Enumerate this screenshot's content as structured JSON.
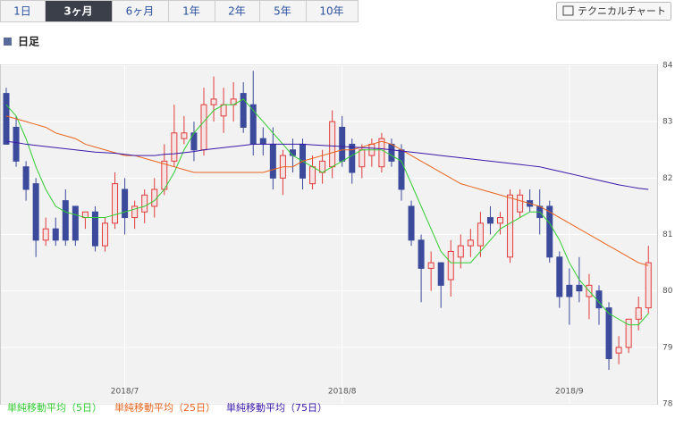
{
  "ui": {
    "tabs": [
      "1日",
      "3ヶ月",
      "6ヶ月",
      "1年",
      "2年",
      "5年",
      "10年"
    ],
    "active_tab": 1,
    "button": "テクニカルチャート",
    "section": "日足"
  },
  "chart_data": {
    "type": "candlestick",
    "categories": [
      null,
      null,
      null,
      null,
      null,
      null,
      null,
      null,
      null,
      null,
      null,
      null,
      "2018/7",
      null,
      null,
      null,
      null,
      null,
      null,
      null,
      null,
      null,
      null,
      null,
      null,
      null,
      null,
      null,
      null,
      null,
      null,
      null,
      null,
      null,
      "2018/8",
      null,
      null,
      null,
      null,
      null,
      null,
      null,
      null,
      null,
      null,
      null,
      null,
      null,
      null,
      null,
      null,
      null,
      null,
      null,
      null,
      null,
      null,
      "2018/9",
      null,
      null,
      null,
      null,
      null,
      null,
      null,
      null
    ],
    "open": [
      83.5,
      82.9,
      82.2,
      81.9,
      80.9,
      81.1,
      81.6,
      81.5,
      81.3,
      81.4,
      80.8,
      81.2,
      81.8,
      81.3,
      81.4,
      81.5,
      81.8,
      82.3,
      82.7,
      82.8,
      82.5,
      83.3,
      83.1,
      83.3,
      83.5,
      83.3,
      82.7,
      82.6,
      82.0,
      82.5,
      82.6,
      81.9,
      82.1,
      82.2,
      82.9,
      82.6,
      82.2,
      82.4,
      82.2,
      82.6,
      82.5,
      81.5,
      80.9,
      80.4,
      80.5,
      80.2,
      80.6,
      80.8,
      80.8,
      81.3,
      81.2,
      80.6,
      81.4,
      81.6,
      81.5,
      81.5,
      80.6,
      80.1,
      80.1,
      79.9,
      80.0,
      79.7,
      78.9,
      79.0,
      79.5,
      79.7
    ],
    "high": [
      83.6,
      83.1,
      82.3,
      82.0,
      81.3,
      81.3,
      81.8,
      81.5,
      81.4,
      81.5,
      81.3,
      82.1,
      82.0,
      81.6,
      81.8,
      82.0,
      82.6,
      83.3,
      83.1,
      83.0,
      83.6,
      83.8,
      83.6,
      83.7,
      83.7,
      83.9,
      82.9,
      82.9,
      82.5,
      82.7,
      82.7,
      82.4,
      82.5,
      83.2,
      83.1,
      82.7,
      82.6,
      82.7,
      82.8,
      82.7,
      82.6,
      81.6,
      81.0,
      80.7,
      80.5,
      80.9,
      81.0,
      81.1,
      81.4,
      81.5,
      81.4,
      81.8,
      81.8,
      81.8,
      81.8,
      81.6,
      80.7,
      80.4,
      80.6,
      80.3,
      80.1,
      79.8,
      79.2,
      79.5,
      79.9,
      80.8
    ],
    "low": [
      82.6,
      82.2,
      81.6,
      80.6,
      80.8,
      80.8,
      80.8,
      80.8,
      81.1,
      80.7,
      80.7,
      81.1,
      81.0,
      81.1,
      81.2,
      81.3,
      81.7,
      82.2,
      82.6,
      82.3,
      82.4,
      83.0,
      82.8,
      83.0,
      82.8,
      82.4,
      82.4,
      81.8,
      81.7,
      82.1,
      81.8,
      81.8,
      81.9,
      82.0,
      82.2,
      81.9,
      82.0,
      82.2,
      82.1,
      82.2,
      81.6,
      80.8,
      79.8,
      80.0,
      79.7,
      79.9,
      80.4,
      80.6,
      80.6,
      81.0,
      81.0,
      80.5,
      81.3,
      81.4,
      81.0,
      80.5,
      79.7,
      79.4,
      79.8,
      79.5,
      79.4,
      78.6,
      78.7,
      78.9,
      79.3,
      79.6
    ],
    "close": [
      82.6,
      82.3,
      81.8,
      80.9,
      81.1,
      80.9,
      80.9,
      80.9,
      81.4,
      80.8,
      81.2,
      81.9,
      81.3,
      81.5,
      81.7,
      81.8,
      82.3,
      82.8,
      82.8,
      82.5,
      83.3,
      83.4,
      83.3,
      83.4,
      82.9,
      82.6,
      82.6,
      82.0,
      82.4,
      82.4,
      82.0,
      82.2,
      82.3,
      83.0,
      82.3,
      82.1,
      82.5,
      82.6,
      82.7,
      82.3,
      81.8,
      80.9,
      80.4,
      80.5,
      80.1,
      80.7,
      80.8,
      80.9,
      81.2,
      81.2,
      81.3,
      81.7,
      81.7,
      81.5,
      81.3,
      80.6,
      79.9,
      79.9,
      80.0,
      80.1,
      79.7,
      78.8,
      79.0,
      79.5,
      79.7,
      80.5
    ],
    "up_color": "#e03c3c",
    "down_color": "#3c4a9c",
    "lines": [
      {
        "name": "単純移動平均（5日）",
        "color": "#33cc33",
        "values": [
          83.3,
          83.1,
          82.7,
          82.2,
          81.8,
          81.5,
          81.4,
          81.35,
          81.3,
          81.3,
          81.3,
          81.35,
          81.4,
          81.45,
          81.5,
          81.6,
          81.8,
          82.1,
          82.5,
          82.8,
          83.0,
          83.2,
          83.3,
          83.3,
          83.4,
          83.2,
          83.0,
          82.8,
          82.6,
          82.4,
          82.3,
          82.2,
          82.1,
          82.2,
          82.3,
          82.4,
          82.5,
          82.5,
          82.5,
          82.4,
          82.3,
          81.9,
          81.5,
          81.1,
          80.7,
          80.5,
          80.5,
          80.5,
          80.7,
          80.9,
          81.1,
          81.2,
          81.3,
          81.4,
          81.4,
          81.2,
          80.9,
          80.5,
          80.2,
          80.0,
          79.8,
          79.6,
          79.5,
          79.4,
          79.4,
          79.6
        ]
      },
      {
        "name": "単純移動平均（25日）",
        "color": "#e8641e",
        "values": [
          83.1,
          83.05,
          83.0,
          82.95,
          82.9,
          82.8,
          82.75,
          82.7,
          82.6,
          82.55,
          82.5,
          82.45,
          82.4,
          82.4,
          82.35,
          82.3,
          82.25,
          82.2,
          82.15,
          82.1,
          82.1,
          82.1,
          82.1,
          82.1,
          82.1,
          82.1,
          82.1,
          82.15,
          82.2,
          82.2,
          82.3,
          82.35,
          82.4,
          82.45,
          82.5,
          82.5,
          82.55,
          82.6,
          82.65,
          82.6,
          82.5,
          82.4,
          82.3,
          82.2,
          82.1,
          82.0,
          81.9,
          81.85,
          81.8,
          81.75,
          81.7,
          81.65,
          81.6,
          81.55,
          81.5,
          81.4,
          81.3,
          81.2,
          81.1,
          81.0,
          80.9,
          80.8,
          80.7,
          80.6,
          80.5,
          80.45
        ]
      },
      {
        "name": "単純移動平均（75日）",
        "color": "#3a18a8",
        "values": [
          82.65,
          82.63,
          82.6,
          82.58,
          82.56,
          82.54,
          82.52,
          82.5,
          82.48,
          82.46,
          82.45,
          82.44,
          82.42,
          82.4,
          82.4,
          82.4,
          82.42,
          82.43,
          82.45,
          82.47,
          82.5,
          82.52,
          82.54,
          82.56,
          82.58,
          82.6,
          82.6,
          82.6,
          82.6,
          82.6,
          82.6,
          82.59,
          82.58,
          82.57,
          82.56,
          82.55,
          82.54,
          82.53,
          82.52,
          82.5,
          82.48,
          82.46,
          82.44,
          82.42,
          82.4,
          82.38,
          82.36,
          82.34,
          82.32,
          82.3,
          82.28,
          82.26,
          82.24,
          82.22,
          82.2,
          82.16,
          82.12,
          82.08,
          82.04,
          82.0,
          81.96,
          81.92,
          81.88,
          81.85,
          81.82,
          81.8
        ]
      }
    ],
    "ylim": [
      78,
      84
    ],
    "yticks": [
      78,
      79,
      80,
      81,
      82,
      83,
      84
    ],
    "grid": true
  }
}
